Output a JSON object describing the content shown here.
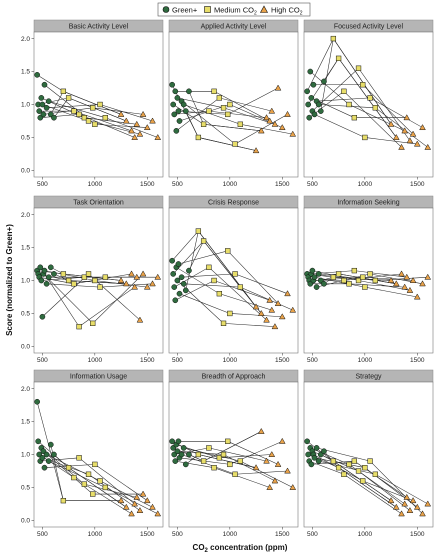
{
  "chart_data": {
    "type": "line",
    "ylabel": "Score (normalized to Green+)",
    "xlabel": "CO",
    "xlabel_sub": "2",
    "xlabel_suffix": " concentration (ppm)",
    "xlim": [
      420,
      1650
    ],
    "ylim": [
      -0.1,
      2.1
    ],
    "xticks": [
      "500",
      "1000",
      "1500"
    ],
    "yticks": [
      "0.0",
      "0.5",
      "1.0",
      "1.5",
      "2.0"
    ],
    "xtick_values": [
      500,
      1000,
      1500
    ],
    "ytick_values": [
      0,
      0.5,
      1.0,
      1.5,
      2.0
    ],
    "legend": [
      {
        "name": "Green+",
        "sub": "",
        "shape": "circle",
        "color": "#2f6b3f"
      },
      {
        "name": "Medium CO",
        "sub": "2",
        "shape": "square",
        "color": "#e8de6a"
      },
      {
        "name": "High CO",
        "sub": "2",
        "shape": "triangle",
        "color": "#e8a24a"
      }
    ],
    "condition_x": {
      "green": [
        450,
        460,
        470,
        480,
        490,
        500,
        510,
        520,
        540,
        560,
        580,
        610
      ],
      "medium": [
        700,
        750,
        800,
        850,
        900,
        940,
        980,
        1000,
        1050,
        1100
      ],
      "high": [
        1250,
        1300,
        1350,
        1380,
        1400,
        1430,
        1460,
        1500,
        1550,
        1600
      ]
    },
    "panels": [
      {
        "title": "Basic Activity Level",
        "green": [
          1.45,
          1.0,
          0.9,
          0.8,
          1.1,
          1.0,
          0.85,
          1.3,
          0.95,
          1.05,
          0.85,
          0.8
        ],
        "medium": [
          1.2,
          1.1,
          0.9,
          0.85,
          0.8,
          0.75,
          0.95,
          0.7,
          1.0,
          0.8
        ],
        "high": [
          0.85,
          0.75,
          0.6,
          0.5,
          0.7,
          0.55,
          0.85,
          0.65,
          0.75,
          0.5
        ]
      },
      {
        "title": "Applied Activity Level",
        "green": [
          1.3,
          1.0,
          0.85,
          1.2,
          0.6,
          1.1,
          0.9,
          0.75,
          1.05,
          1.0,
          0.9,
          1.2
        ],
        "medium": [
          0.5,
          0.7,
          0.9,
          1.2,
          1.1,
          0.95,
          0.85,
          1.0,
          0.4,
          0.7
        ],
        "high": [
          0.3,
          0.6,
          0.8,
          0.75,
          0.9,
          0.7,
          1.25,
          0.65,
          0.85,
          0.55
        ]
      },
      {
        "title": "Focused Activity Level",
        "green": [
          1.2,
          1.0,
          0.8,
          1.5,
          1.1,
          0.9,
          1.3,
          0.85,
          1.05,
          1.0,
          0.9,
          1.35
        ],
        "medium": [
          2.0,
          1.7,
          1.2,
          1.0,
          0.8,
          1.55,
          1.3,
          0.5,
          1.1,
          0.95
        ],
        "high": [
          0.7,
          0.5,
          0.35,
          0.6,
          0.8,
          0.45,
          0.55,
          0.4,
          0.65,
          0.35
        ]
      },
      {
        "title": "Task Orientation",
        "green": [
          1.15,
          1.1,
          1.05,
          1.2,
          1.0,
          0.45,
          1.1,
          1.15,
          0.95,
          1.05,
          1.2,
          1.1
        ],
        "medium": [
          1.1,
          1.0,
          0.95,
          0.3,
          1.05,
          1.1,
          0.35,
          1.0,
          0.9,
          1.05
        ],
        "high": [
          1.0,
          0.95,
          1.1,
          0.9,
          1.05,
          0.4,
          1.1,
          0.9,
          0.95,
          1.05
        ]
      },
      {
        "title": "Crisis Response",
        "green": [
          1.3,
          1.1,
          0.9,
          0.7,
          1.2,
          1.0,
          1.25,
          0.8,
          1.05,
          0.95,
          0.85,
          1.15
        ],
        "medium": [
          1.75,
          1.6,
          1.2,
          1.0,
          0.8,
          0.35,
          1.45,
          0.5,
          1.1,
          0.9
        ],
        "high": [
          0.6,
          0.5,
          0.4,
          0.7,
          0.55,
          0.3,
          0.65,
          0.45,
          0.8,
          0.55
        ]
      },
      {
        "title": "Information Seeking",
        "green": [
          1.1,
          1.05,
          1.0,
          0.95,
          1.1,
          1.15,
          1.0,
          1.05,
          0.9,
          1.1,
          1.0,
          0.95
        ],
        "medium": [
          1.05,
          1.1,
          1.0,
          0.95,
          1.15,
          1.0,
          1.05,
          0.9,
          1.1,
          1.0
        ],
        "high": [
          1.0,
          0.95,
          1.1,
          0.9,
          1.05,
          0.85,
          1.0,
          0.75,
          0.95,
          1.05
        ]
      },
      {
        "title": "Information Usage",
        "green": [
          1.8,
          1.2,
          1.0,
          0.9,
          1.1,
          0.95,
          1.05,
          0.8,
          1.0,
          0.9,
          1.15,
          1.0
        ],
        "medium": [
          0.3,
          0.8,
          0.65,
          0.95,
          0.55,
          0.7,
          0.4,
          0.85,
          0.6,
          0.5
        ],
        "high": [
          0.3,
          0.2,
          0.1,
          0.25,
          0.35,
          0.15,
          0.4,
          0.3,
          0.2,
          0.1
        ]
      },
      {
        "title": "Breadth of Approach",
        "green": [
          1.2,
          1.1,
          1.0,
          0.9,
          1.15,
          1.05,
          1.2,
          0.95,
          1.0,
          1.1,
          0.85,
          1.0
        ],
        "medium": [
          1.0,
          0.9,
          1.1,
          0.8,
          0.95,
          1.0,
          1.2,
          0.85,
          0.7,
          0.9
        ],
        "high": [
          0.8,
          1.35,
          0.9,
          0.5,
          1.0,
          0.6,
          0.85,
          1.2,
          0.75,
          0.5
        ]
      },
      {
        "title": "Strategy",
        "green": [
          1.2,
          1.0,
          0.9,
          1.1,
          0.85,
          1.05,
          1.0,
          0.95,
          1.1,
          0.9,
          1.0,
          1.05
        ],
        "medium": [
          0.9,
          0.8,
          0.7,
          0.85,
          0.9,
          0.75,
          0.6,
          0.8,
          0.9,
          0.7
        ],
        "high": [
          0.3,
          0.2,
          0.1,
          0.25,
          0.35,
          0.15,
          0.3,
          0.2,
          0.1,
          0.25
        ]
      }
    ]
  }
}
